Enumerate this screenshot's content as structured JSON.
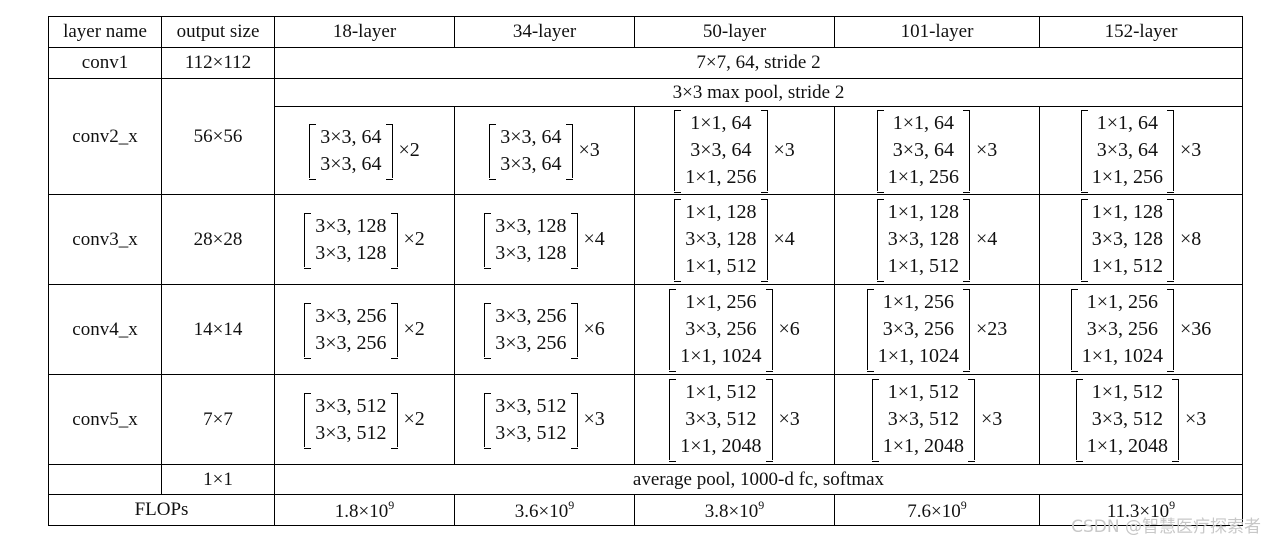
{
  "headers": [
    "layer name",
    "output size",
    "18-layer",
    "34-layer",
    "50-layer",
    "101-layer",
    "152-layer"
  ],
  "conv1": {
    "name": "conv1",
    "size": "112×112",
    "desc": "7×7, 64, stride 2"
  },
  "pool": "3×3 max pool, stride 2",
  "rows": [
    {
      "name": "conv2_x",
      "size": "56×56",
      "blocks": [
        {
          "lines": [
            "3×3, 64",
            "3×3, 64"
          ],
          "mult": "×2"
        },
        {
          "lines": [
            "3×3, 64",
            "3×3, 64"
          ],
          "mult": "×3"
        },
        {
          "lines": [
            "1×1, 64",
            "3×3, 64",
            "1×1, 256"
          ],
          "mult": "×3"
        },
        {
          "lines": [
            "1×1, 64",
            "3×3, 64",
            "1×1, 256"
          ],
          "mult": "×3"
        },
        {
          "lines": [
            "1×1, 64",
            "3×3, 64",
            "1×1, 256"
          ],
          "mult": "×3"
        }
      ]
    },
    {
      "name": "conv3_x",
      "size": "28×28",
      "blocks": [
        {
          "lines": [
            "3×3, 128",
            "3×3, 128"
          ],
          "mult": "×2"
        },
        {
          "lines": [
            "3×3, 128",
            "3×3, 128"
          ],
          "mult": "×4"
        },
        {
          "lines": [
            "1×1, 128",
            "3×3, 128",
            "1×1, 512"
          ],
          "mult": "×4"
        },
        {
          "lines": [
            "1×1, 128",
            "3×3, 128",
            "1×1, 512"
          ],
          "mult": "×4"
        },
        {
          "lines": [
            "1×1, 128",
            "3×3, 128",
            "1×1, 512"
          ],
          "mult": "×8"
        }
      ]
    },
    {
      "name": "conv4_x",
      "size": "14×14",
      "blocks": [
        {
          "lines": [
            "3×3, 256",
            "3×3, 256"
          ],
          "mult": "×2"
        },
        {
          "lines": [
            "3×3, 256",
            "3×3, 256"
          ],
          "mult": "×6"
        },
        {
          "lines": [
            "1×1, 256",
            "3×3, 256",
            "1×1, 1024"
          ],
          "mult": "×6"
        },
        {
          "lines": [
            "1×1, 256",
            "3×3, 256",
            "1×1, 1024"
          ],
          "mult": "×23"
        },
        {
          "lines": [
            "1×1, 256",
            "3×3, 256",
            "1×1, 1024"
          ],
          "mult": "×36"
        }
      ]
    },
    {
      "name": "conv5_x",
      "size": "7×7",
      "blocks": [
        {
          "lines": [
            "3×3, 512",
            "3×3, 512"
          ],
          "mult": "×2"
        },
        {
          "lines": [
            "3×3, 512",
            "3×3, 512"
          ],
          "mult": "×3"
        },
        {
          "lines": [
            "1×1, 512",
            "3×3, 512",
            "1×1, 2048"
          ],
          "mult": "×3"
        },
        {
          "lines": [
            "1×1, 512",
            "3×3, 512",
            "1×1, 2048"
          ],
          "mult": "×3"
        },
        {
          "lines": [
            "1×1, 512",
            "3×3, 512",
            "1×1, 2048"
          ],
          "mult": "×3"
        }
      ]
    }
  ],
  "final": {
    "size": "1×1",
    "desc": "average pool, 1000-d fc, softmax"
  },
  "flops": {
    "label": "FLOPs",
    "base": [
      "1.8×10",
      "3.6×10",
      "3.8×10",
      "7.6×10",
      "11.3×10"
    ],
    "exp": "9"
  },
  "watermark": "CSDN @智慧医疗探索者"
}
